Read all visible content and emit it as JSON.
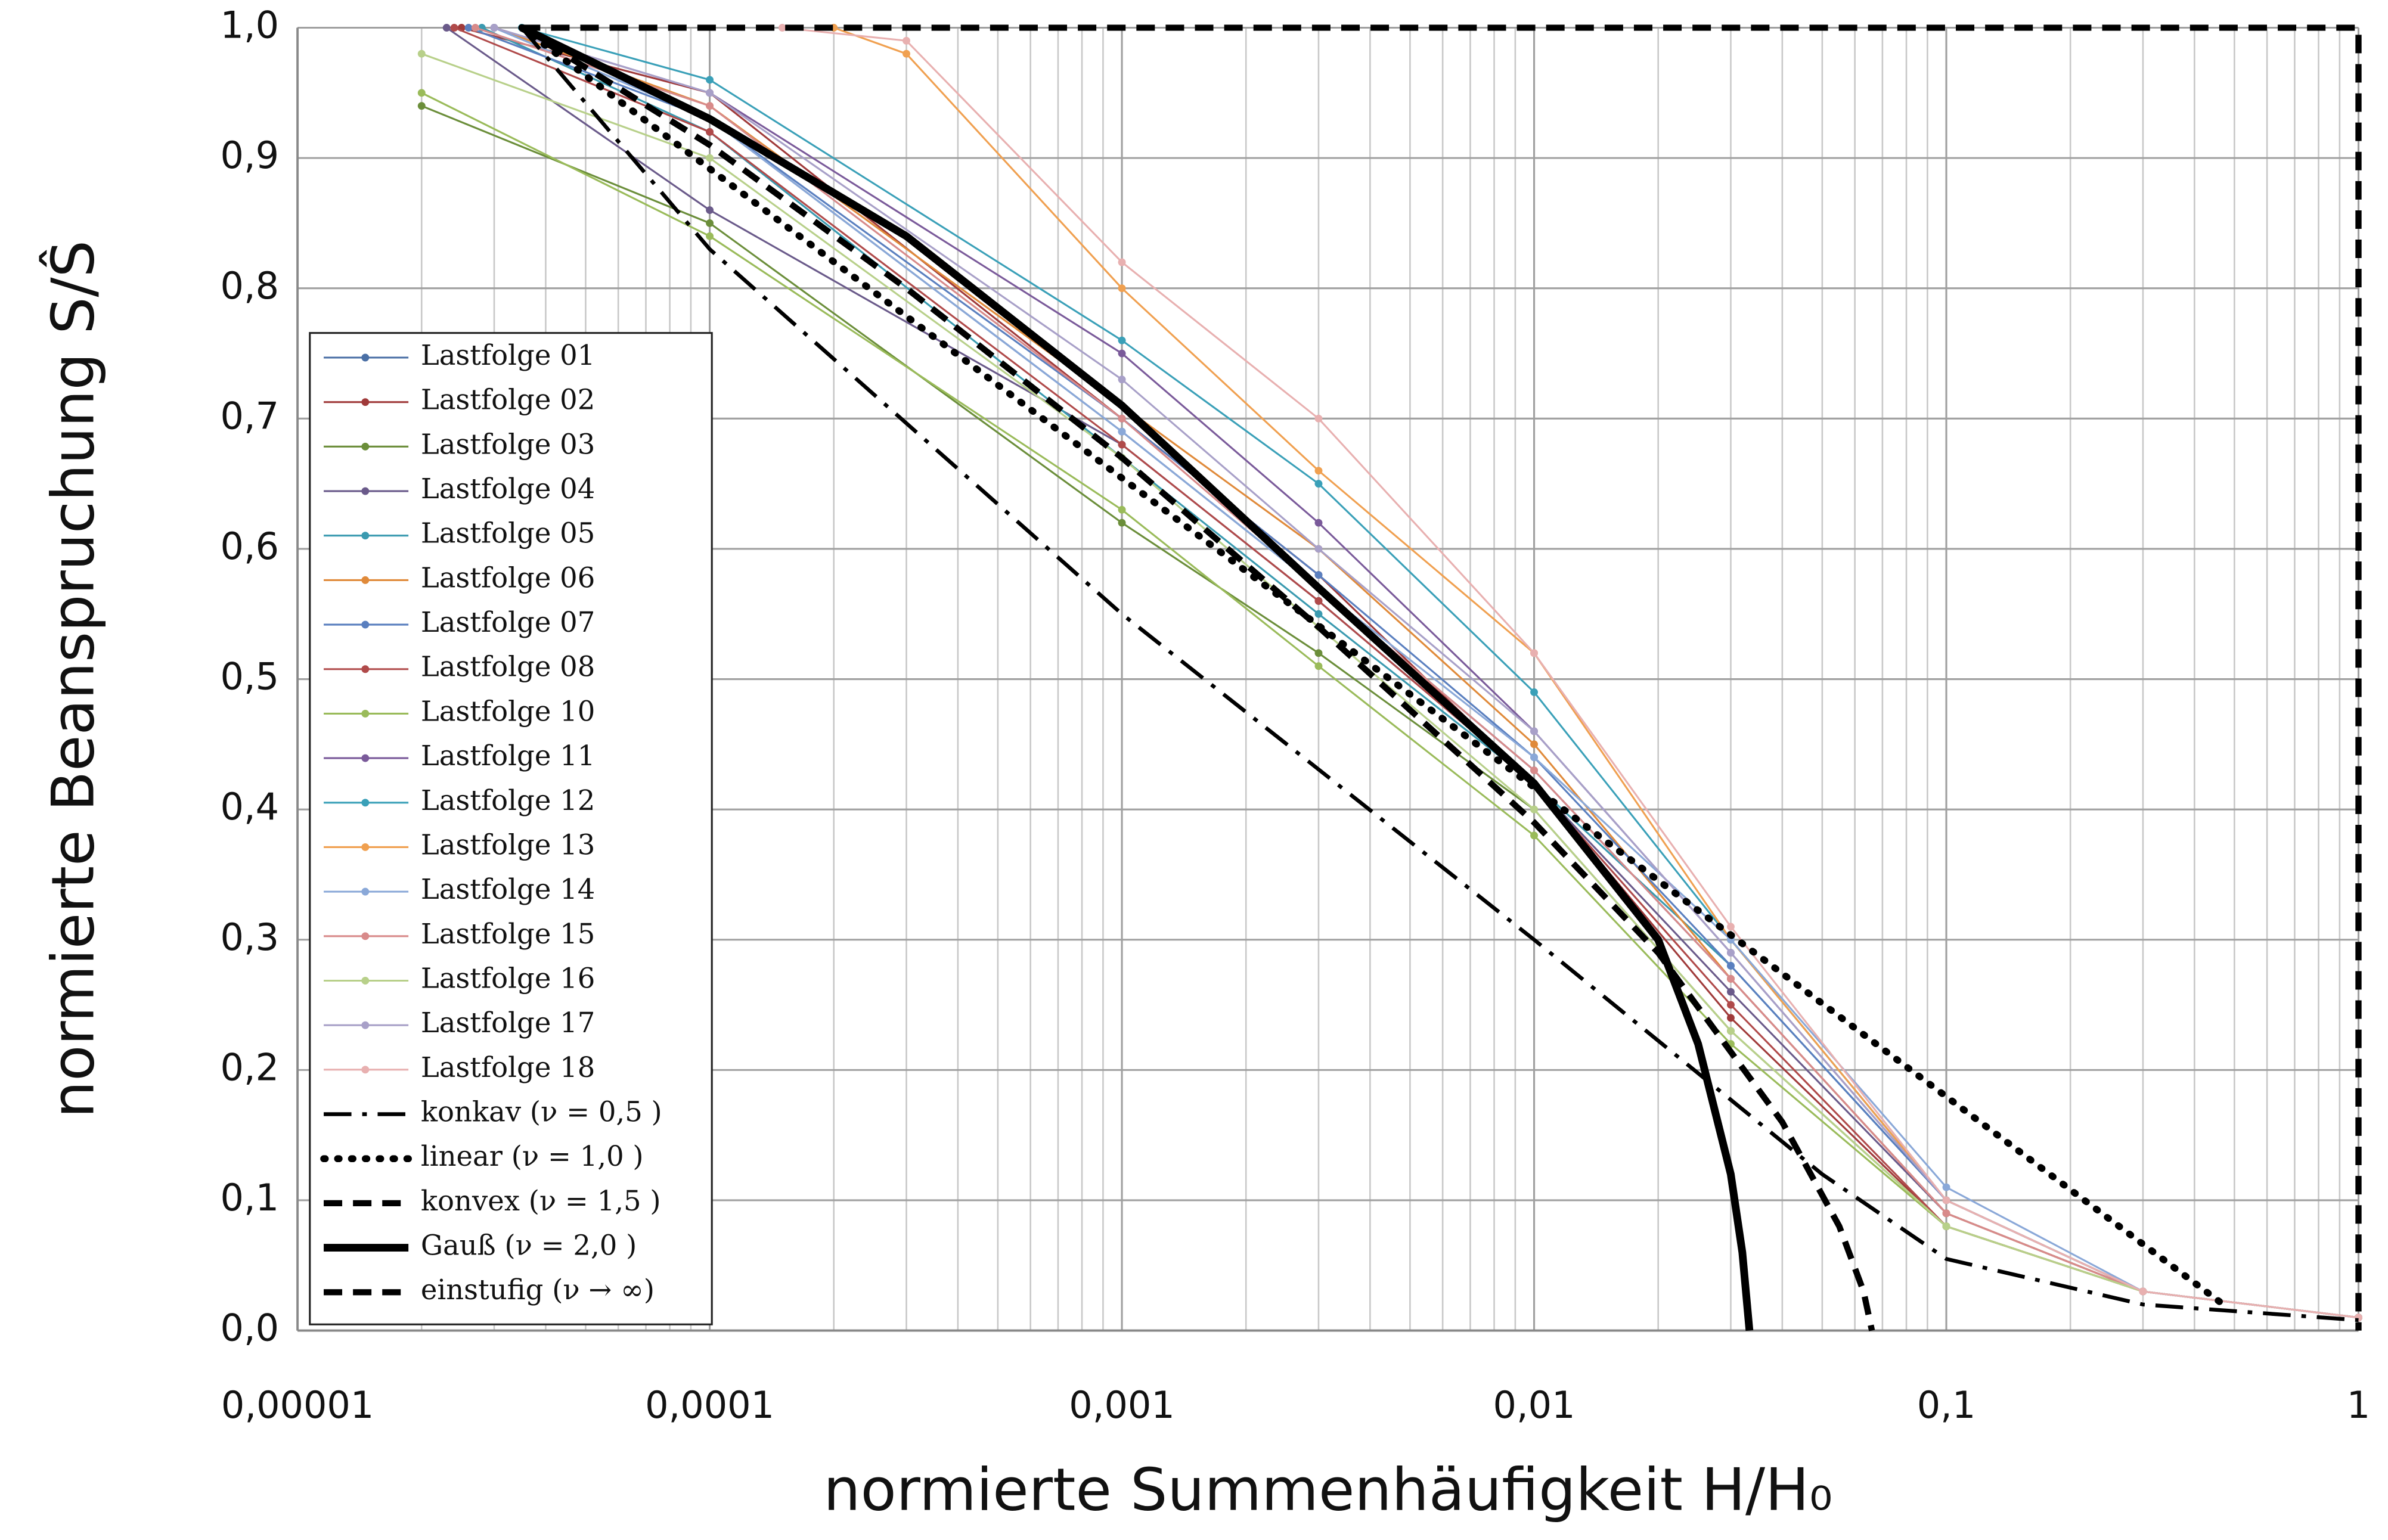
{
  "chart_data": {
    "type": "line",
    "xlabel": "normierte Summenhäufigkeit  H/H₀",
    "ylabel": "normierte Beanspruchung S/Ŝ",
    "xscale": "log",
    "xlim": [
      1e-05,
      1
    ],
    "ylim": [
      0,
      1
    ],
    "xticks": [
      {
        "value": 1e-05,
        "label": "0,00001"
      },
      {
        "value": 0.0001,
        "label": "0,0001"
      },
      {
        "value": 0.001,
        "label": "0,001"
      },
      {
        "value": 0.01,
        "label": "0,01"
      },
      {
        "value": 0.1,
        "label": "0,1"
      },
      1
    ],
    "yticks": [
      {
        "value": 0,
        "label": "0,0"
      },
      {
        "value": 0.1,
        "label": "0,1"
      },
      {
        "value": 0.2,
        "label": "0,2"
      },
      {
        "value": 0.3,
        "label": "0,3"
      },
      {
        "value": 0.4,
        "label": "0,4"
      },
      {
        "value": 0.5,
        "label": "0,5"
      },
      {
        "value": 0.6,
        "label": "0,6"
      },
      {
        "value": 0.7,
        "label": "0,7"
      },
      {
        "value": 0.8,
        "label": "0,8"
      },
      {
        "value": 0.9,
        "label": "0,9"
      },
      {
        "value": 1,
        "label": "1,0"
      }
    ],
    "grid": true,
    "minor_grid": true,
    "legend": "lower left",
    "series": [
      {
        "name": "Lastfolge 01",
        "color": "#4a6fa5",
        "style": "marker",
        "x": [
          3e-05,
          0.0001,
          0.001,
          0.003,
          0.01,
          0.03,
          0.1,
          0.3,
          1
        ],
        "values": [
          1,
          0.93,
          0.69,
          0.57,
          0.43,
          0.27,
          0.09,
          0.03,
          0.01
        ]
      },
      {
        "name": "Lastfolge 02",
        "color": "#a03a3a",
        "style": "marker",
        "x": [
          2.5e-05,
          0.0001,
          0.001,
          0.003,
          0.01,
          0.03,
          0.1,
          0.3,
          1
        ],
        "values": [
          1,
          0.95,
          0.7,
          0.58,
          0.42,
          0.24,
          0.08,
          0.03,
          0.01
        ]
      },
      {
        "name": "Lastfolge 03",
        "color": "#6b8e3a",
        "style": "marker",
        "x": [
          2e-05,
          0.0001,
          0.001,
          0.003,
          0.01,
          0.03,
          0.1,
          0.3,
          1
        ],
        "values": [
          0.94,
          0.85,
          0.62,
          0.52,
          0.4,
          0.23,
          0.08,
          0.03,
          0.01
        ]
      },
      {
        "name": "Lastfolge 04",
        "color": "#6a5a8a",
        "style": "marker",
        "x": [
          2.3e-05,
          0.0001,
          0.001,
          0.003,
          0.01,
          0.03,
          0.1,
          0.3,
          1
        ],
        "values": [
          1,
          0.86,
          0.68,
          0.56,
          0.42,
          0.26,
          0.09,
          0.03,
          0.01
        ]
      },
      {
        "name": "Lastfolge 05",
        "color": "#3a9ab0",
        "style": "marker",
        "x": [
          2.8e-05,
          0.0001,
          0.001,
          0.003,
          0.01,
          0.03,
          0.1,
          0.3,
          1
        ],
        "values": [
          1,
          0.92,
          0.67,
          0.55,
          0.42,
          0.28,
          0.1,
          0.03,
          0.01
        ]
      },
      {
        "name": "Lastfolge 06",
        "color": "#e08a3a",
        "style": "marker",
        "x": [
          3e-05,
          0.0001,
          0.001,
          0.003,
          0.01,
          0.03,
          0.1,
          0.3,
          1
        ],
        "values": [
          1,
          0.94,
          0.71,
          0.6,
          0.45,
          0.27,
          0.09,
          0.03,
          0.01
        ]
      },
      {
        "name": "Lastfolge 07",
        "color": "#5a7fbf",
        "style": "marker",
        "x": [
          2.6e-05,
          0.0001,
          0.001,
          0.003,
          0.01,
          0.03,
          0.1,
          0.3,
          1
        ],
        "values": [
          1,
          0.93,
          0.7,
          0.58,
          0.44,
          0.28,
          0.1,
          0.03,
          0.01
        ]
      },
      {
        "name": "Lastfolge 08",
        "color": "#b04a4a",
        "style": "marker",
        "x": [
          2.4e-05,
          0.0001,
          0.001,
          0.003,
          0.01,
          0.03,
          0.1,
          0.3,
          1
        ],
        "values": [
          1,
          0.92,
          0.68,
          0.56,
          0.42,
          0.25,
          0.08,
          0.03,
          0.01
        ]
      },
      {
        "name": "Lastfolge 10",
        "color": "#9abb5a",
        "style": "marker",
        "x": [
          2e-05,
          0.0001,
          0.001,
          0.003,
          0.01,
          0.03,
          0.1,
          0.3,
          1
        ],
        "values": [
          0.95,
          0.84,
          0.63,
          0.51,
          0.38,
          0.22,
          0.08,
          0.03,
          0.01
        ]
      },
      {
        "name": "Lastfolge 11",
        "color": "#7a5a9a",
        "style": "marker",
        "x": [
          3e-05,
          0.0001,
          0.001,
          0.003,
          0.01,
          0.03,
          0.1,
          0.3,
          1
        ],
        "values": [
          1,
          0.95,
          0.75,
          0.62,
          0.46,
          0.29,
          0.1,
          0.03,
          0.01
        ]
      },
      {
        "name": "Lastfolge 12",
        "color": "#3aa0b8",
        "style": "marker",
        "x": [
          3.5e-05,
          0.0001,
          0.001,
          0.003,
          0.01,
          0.03,
          0.1,
          0.3,
          1
        ],
        "values": [
          1,
          0.96,
          0.76,
          0.65,
          0.49,
          0.3,
          0.1,
          0.03,
          0.01
        ]
      },
      {
        "name": "Lastfolge 13",
        "color": "#f0a050",
        "style": "marker",
        "x": [
          0.0002,
          0.0003,
          0.001,
          0.003,
          0.01,
          0.03,
          0.1,
          0.3,
          1
        ],
        "values": [
          1,
          0.98,
          0.8,
          0.66,
          0.52,
          0.3,
          0.1,
          0.03,
          0.01
        ]
      },
      {
        "name": "Lastfolge 14",
        "color": "#8aa8d8",
        "style": "marker",
        "x": [
          3e-05,
          0.0001,
          0.001,
          0.003,
          0.01,
          0.03,
          0.1,
          0.3,
          1
        ],
        "values": [
          1,
          0.93,
          0.69,
          0.57,
          0.44,
          0.3,
          0.11,
          0.03,
          0.01
        ]
      },
      {
        "name": "Lastfolge 15",
        "color": "#d88a8a",
        "style": "marker",
        "x": [
          2.7e-05,
          0.0001,
          0.001,
          0.003,
          0.01,
          0.03,
          0.1,
          0.3,
          1
        ],
        "values": [
          1,
          0.94,
          0.7,
          0.57,
          0.43,
          0.27,
          0.09,
          0.03,
          0.01
        ]
      },
      {
        "name": "Lastfolge 16",
        "color": "#b8d08a",
        "style": "marker",
        "x": [
          2e-05,
          0.0001,
          0.001,
          0.003,
          0.01,
          0.03,
          0.1,
          0.3,
          1
        ],
        "values": [
          0.98,
          0.9,
          0.67,
          0.54,
          0.4,
          0.23,
          0.08,
          0.03,
          0.01
        ]
      },
      {
        "name": "Lastfolge 17",
        "color": "#a8a0c8",
        "style": "marker",
        "x": [
          3e-05,
          0.0001,
          0.001,
          0.003,
          0.01,
          0.03,
          0.1,
          0.3,
          1
        ],
        "values": [
          1,
          0.95,
          0.73,
          0.6,
          0.46,
          0.29,
          0.1,
          0.03,
          0.01
        ]
      },
      {
        "name": "Lastfolge 18",
        "color": "#e8b0b0",
        "style": "marker",
        "x": [
          0.00015,
          0.0003,
          0.001,
          0.003,
          0.01,
          0.03,
          0.1,
          0.3,
          1
        ],
        "values": [
          1,
          0.99,
          0.82,
          0.7,
          0.52,
          0.31,
          0.1,
          0.03,
          0.01
        ]
      },
      {
        "name": "konkav (ν = 0,5 )",
        "color": "#000000",
        "style": "dash-dot",
        "x": [
          3.5e-05,
          0.0001,
          0.001,
          0.01,
          0.05,
          0.1,
          0.3,
          1
        ],
        "values": [
          1,
          0.83,
          0.55,
          0.3,
          0.12,
          0.055,
          0.02,
          0.008
        ]
      },
      {
        "name": "linear (ν = 1,0 )",
        "color": "#000000",
        "style": "dotted",
        "x": [
          3.5e-05,
          0.47
        ],
        "values": [
          1,
          0.02
        ]
      },
      {
        "name": "konvex (ν = 1,5 )",
        "color": "#000000",
        "style": "dashed",
        "x": [
          3.5e-05,
          0.0001,
          0.0003,
          0.001,
          0.003,
          0.01,
          0.02,
          0.04,
          0.055,
          0.063,
          0.066
        ],
        "values": [
          1,
          0.91,
          0.8,
          0.67,
          0.54,
          0.39,
          0.29,
          0.16,
          0.08,
          0.03,
          0
        ]
      },
      {
        "name": "Gauß (ν = 2,0 )",
        "color": "#000000",
        "style": "solid",
        "x": [
          3.5e-05,
          0.0001,
          0.0003,
          0.001,
          0.003,
          0.01,
          0.02,
          0.025,
          0.03,
          0.032,
          0.0333
        ],
        "values": [
          1,
          0.93,
          0.84,
          0.71,
          0.57,
          0.42,
          0.3,
          0.22,
          0.12,
          0.06,
          0
        ]
      },
      {
        "name": "einstufig (ν → ∞)",
        "color": "#000000",
        "style": "dashed",
        "x": [
          3.5e-05,
          1,
          1
        ],
        "values": [
          1,
          1,
          0
        ]
      }
    ]
  }
}
